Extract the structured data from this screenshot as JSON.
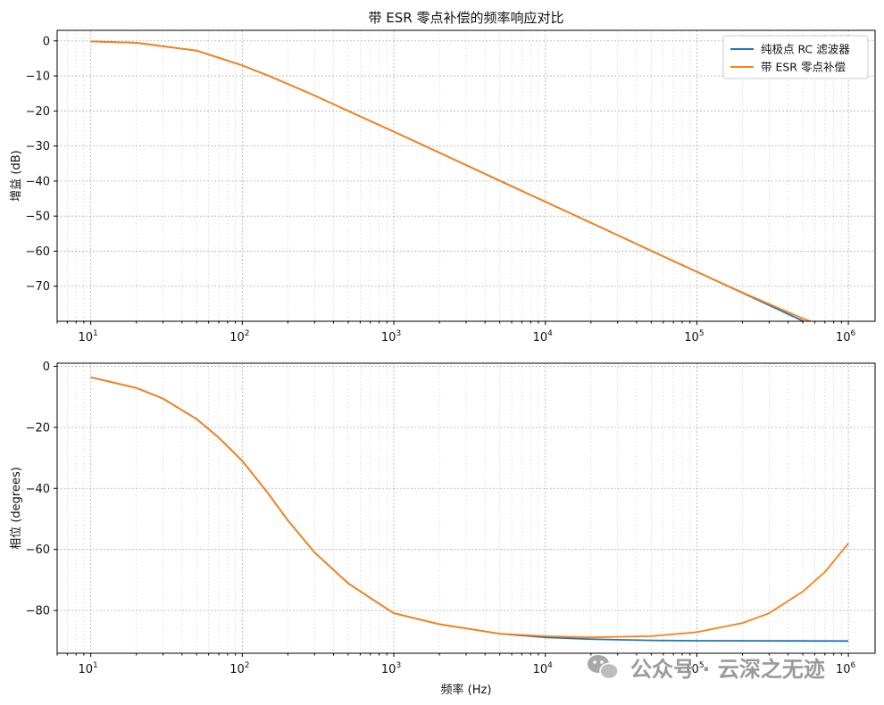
{
  "watermark": {
    "text": "公众号 · 云深之无迹",
    "icon": "wechat-icon",
    "color": "#a0a0a0"
  },
  "colors": {
    "pure": "#1f77b4",
    "esr": "#ff7f0e"
  },
  "chart_data": [
    {
      "type": "line",
      "title": "带 ESR 零点补偿的频率响应对比",
      "xlabel": "",
      "ylabel": "增益 (dB)",
      "xscale": "log",
      "xlim": [
        6,
        1500000
      ],
      "ylim": [
        -80,
        3
      ],
      "xticks": [
        {
          "value": 10,
          "base": "10",
          "exp": "1"
        },
        {
          "value": 100,
          "base": "10",
          "exp": "2"
        },
        {
          "value": 1000,
          "base": "10",
          "exp": "3"
        },
        {
          "value": 10000,
          "base": "10",
          "exp": "4"
        },
        {
          "value": 100000,
          "base": "10",
          "exp": "5"
        },
        {
          "value": 1000000,
          "base": "10",
          "exp": "6"
        }
      ],
      "yticks": [
        {
          "value": 0,
          "label": "0"
        },
        {
          "value": -10,
          "label": "−10"
        },
        {
          "value": -20,
          "label": "−20"
        },
        {
          "value": -30,
          "label": "−30"
        },
        {
          "value": -40,
          "label": "−40"
        },
        {
          "value": -50,
          "label": "−50"
        },
        {
          "value": -60,
          "label": "−60"
        },
        {
          "value": -70,
          "label": "−70"
        }
      ],
      "grid": true,
      "legend": "top-right",
      "series": [
        {
          "name": "纯极点 RC 滤波器",
          "color": "#1f77b4",
          "x": [
            10,
            20,
            50,
            100,
            150,
            200,
            300,
            500,
            1000,
            2000,
            5000,
            10000,
            20000,
            50000,
            100000,
            200000,
            500000,
            1000000
          ],
          "y": [
            -0.15,
            -0.55,
            -2.8,
            -7.0,
            -10.0,
            -12.3,
            -15.6,
            -20.0,
            -25.9,
            -31.9,
            -39.9,
            -45.9,
            -51.9,
            -59.9,
            -65.9,
            -71.9,
            -79.9,
            -85.9
          ]
        },
        {
          "name": "带 ESR 零点补偿",
          "color": "#ff7f0e",
          "x": [
            10,
            20,
            50,
            100,
            150,
            200,
            300,
            500,
            1000,
            2000,
            5000,
            10000,
            20000,
            50000,
            100000,
            200000,
            500000,
            1000000
          ],
          "y": [
            -0.15,
            -0.55,
            -2.8,
            -7.0,
            -10.0,
            -12.3,
            -15.6,
            -20.0,
            -25.9,
            -31.9,
            -39.9,
            -45.9,
            -51.9,
            -59.9,
            -65.9,
            -71.8,
            -79.2,
            -84.0
          ]
        }
      ]
    },
    {
      "type": "line",
      "title": "",
      "xlabel": "频率 (Hz)",
      "ylabel": "相位 (degrees)",
      "xscale": "log",
      "xlim": [
        6,
        1500000
      ],
      "ylim": [
        -94,
        1
      ],
      "xticks": [
        {
          "value": 10,
          "base": "10",
          "exp": "1"
        },
        {
          "value": 100,
          "base": "10",
          "exp": "2"
        },
        {
          "value": 1000,
          "base": "10",
          "exp": "3"
        },
        {
          "value": 10000,
          "base": "10",
          "exp": "4"
        },
        {
          "value": 100000,
          "base": "10",
          "exp": "5"
        },
        {
          "value": 1000000,
          "base": "10",
          "exp": "6"
        }
      ],
      "yticks": [
        {
          "value": 0,
          "label": "0"
        },
        {
          "value": -20,
          "label": "−20"
        },
        {
          "value": -40,
          "label": "−40"
        },
        {
          "value": -60,
          "label": "−60"
        },
        {
          "value": -80,
          "label": "−80"
        }
      ],
      "grid": true,
      "legend": "none",
      "series": [
        {
          "name": "纯极点 RC 滤波器",
          "color": "#1f77b4",
          "x": [
            10,
            20,
            30,
            50,
            70,
            100,
            150,
            200,
            300,
            500,
            700,
            1000,
            2000,
            5000,
            10000,
            20000,
            50000,
            100000,
            1000000
          ],
          "y": [
            -3.6,
            -7.1,
            -10.6,
            -17.3,
            -23.4,
            -31.0,
            -42.0,
            -50.5,
            -61.0,
            -71.1,
            -75.9,
            -80.9,
            -84.5,
            -87.6,
            -88.8,
            -89.4,
            -89.8,
            -89.9,
            -90.0
          ]
        },
        {
          "name": "带 ESR 零点补偿",
          "color": "#ff7f0e",
          "x": [
            10,
            20,
            30,
            50,
            70,
            100,
            150,
            200,
            300,
            500,
            700,
            1000,
            2000,
            5000,
            10000,
            20000,
            50000,
            100000,
            200000,
            300000,
            500000,
            700000,
            1000000
          ],
          "y": [
            -3.6,
            -7.1,
            -10.6,
            -17.3,
            -23.4,
            -31.0,
            -42.0,
            -50.5,
            -61.0,
            -71.1,
            -75.9,
            -80.9,
            -84.5,
            -87.6,
            -88.4,
            -88.8,
            -88.4,
            -87.1,
            -84.1,
            -80.9,
            -73.8,
            -67.4,
            -58.0
          ]
        }
      ]
    }
  ]
}
